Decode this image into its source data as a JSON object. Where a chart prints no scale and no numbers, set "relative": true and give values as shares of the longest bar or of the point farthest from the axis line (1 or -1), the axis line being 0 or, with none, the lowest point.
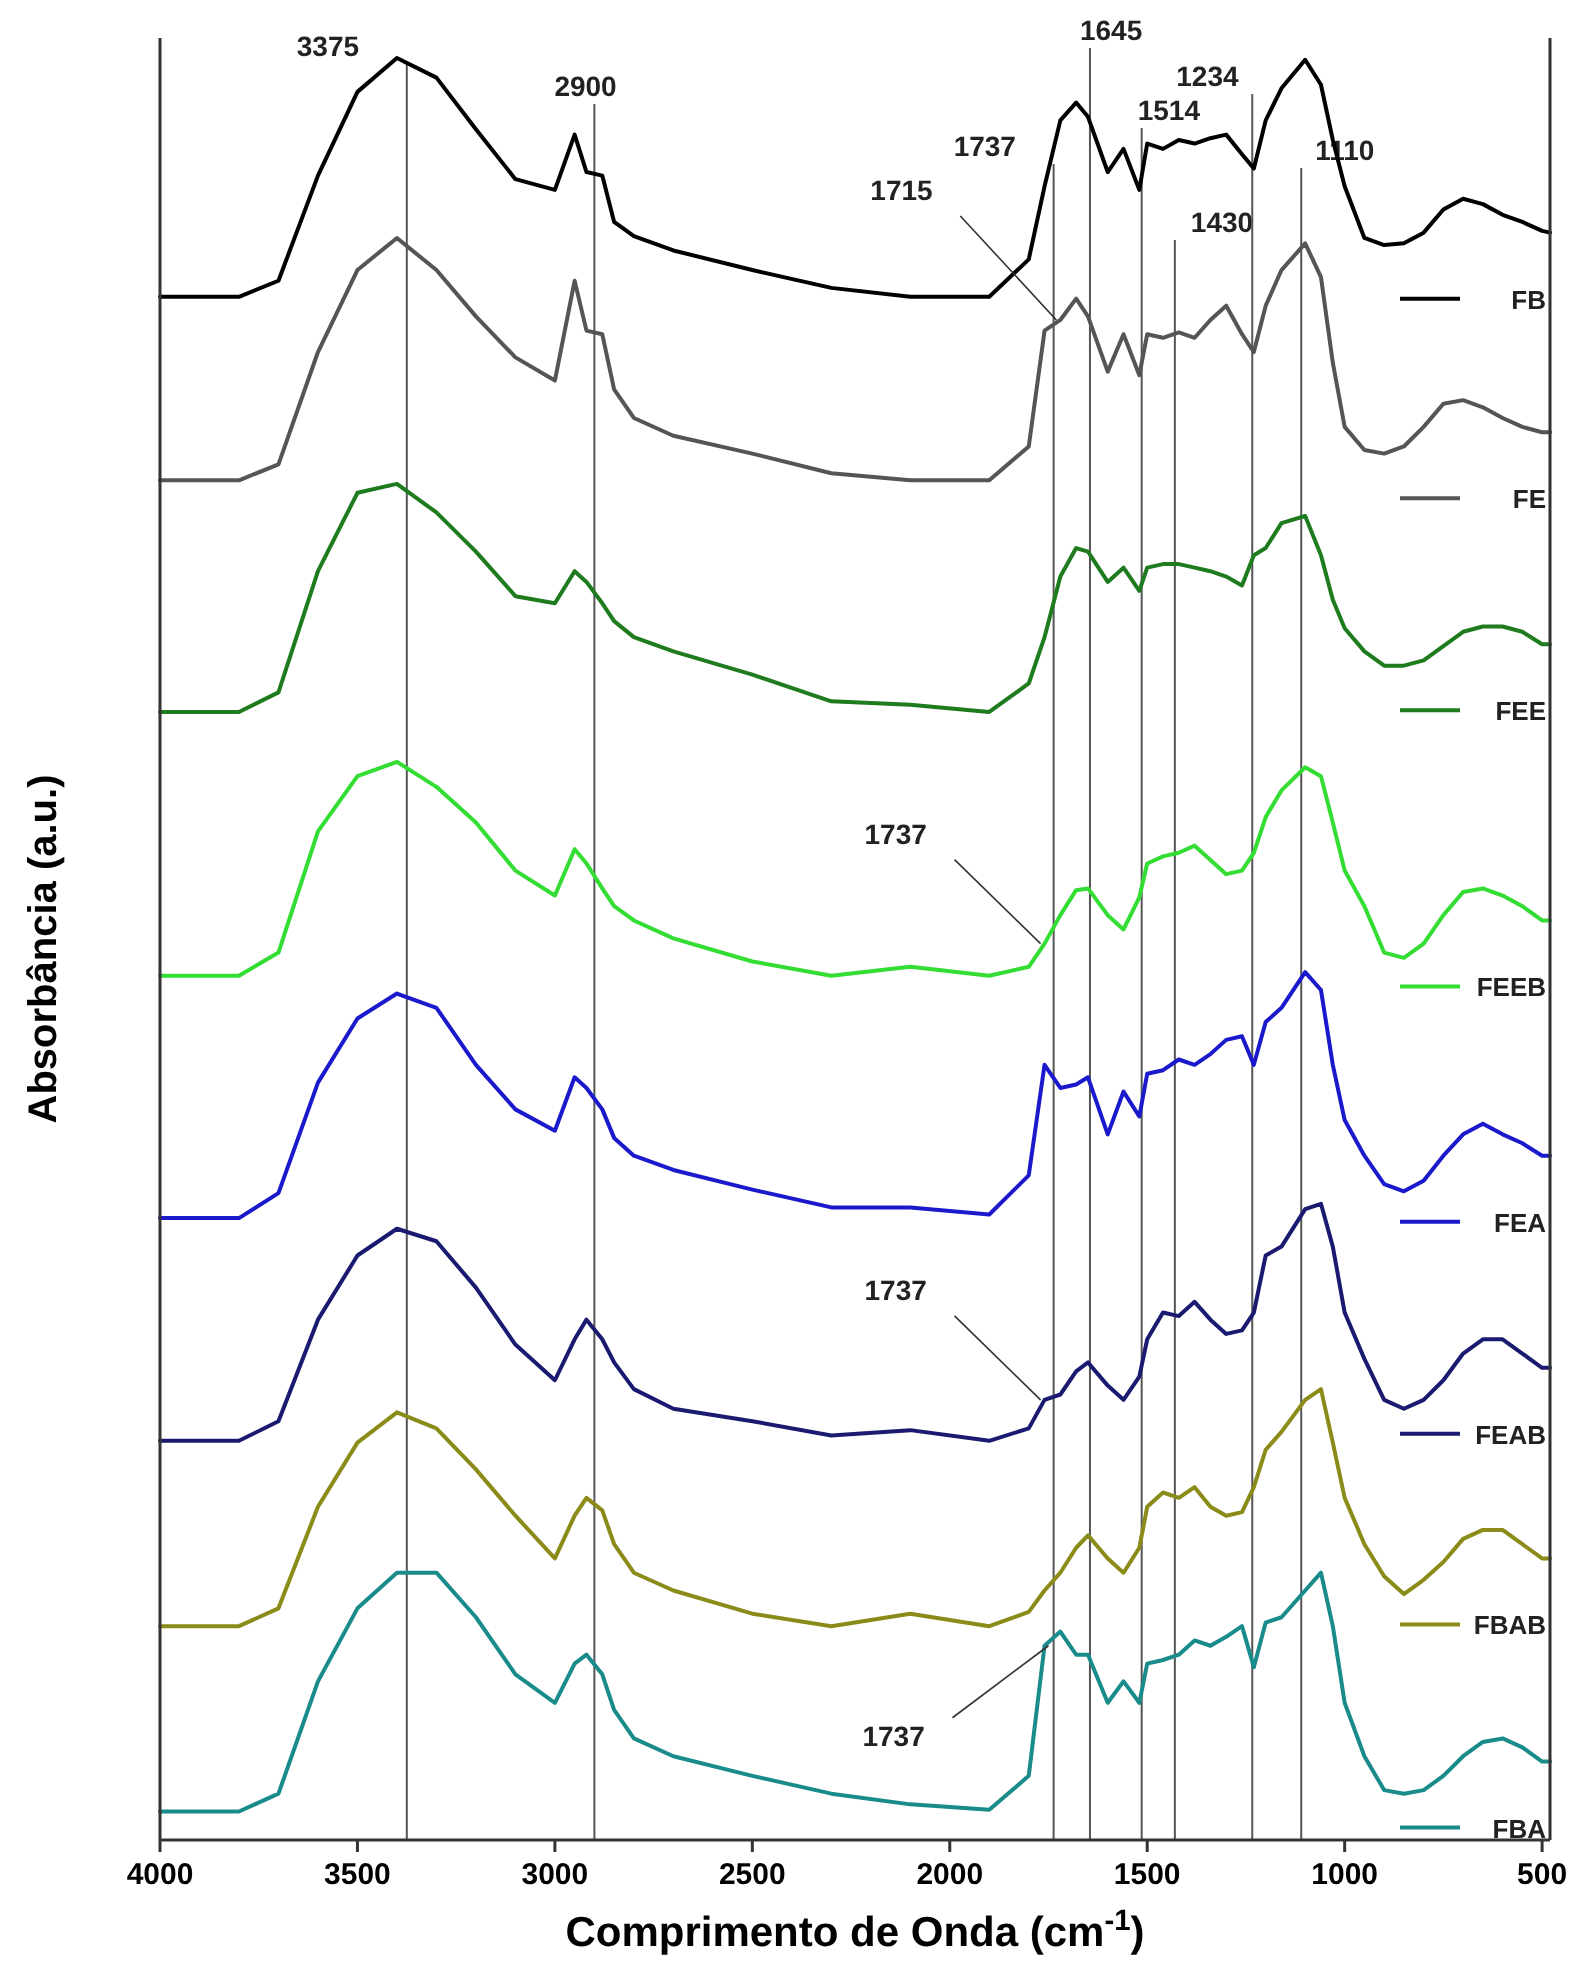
{
  "chart_data": {
    "type": "line",
    "relative": true,
    "xlabel": "Comprimento de Onda (cm$^{-1}$)",
    "ylabel": "Absorbância (a.u.)",
    "xlim": [
      4000,
      480
    ],
    "xticks": [
      4000,
      3500,
      3000,
      2500,
      2000,
      1500,
      1000,
      500
    ],
    "x": [
      4000,
      3800,
      3700,
      3600,
      3500,
      3400,
      3300,
      3200,
      3100,
      3000,
      2950,
      2920,
      2880,
      2850,
      2800,
      2700,
      2500,
      2300,
      2100,
      1900,
      1800,
      1760,
      1720,
      1680,
      1650,
      1600,
      1560,
      1520,
      1500,
      1460,
      1420,
      1380,
      1340,
      1300,
      1260,
      1230,
      1200,
      1160,
      1100,
      1060,
      1030,
      1000,
      950,
      900,
      850,
      800,
      750,
      700,
      650,
      600,
      550,
      500,
      480
    ],
    "line_style": "solid",
    "marker": "none",
    "grid": false,
    "legend": "right",
    "series": [
      {
        "name": "FB",
        "color": "#000000",
        "values": [
          0.866,
          0.866,
          0.875,
          0.934,
          0.981,
          1,
          0.989,
          0.96,
          0.932,
          0.926,
          0.957,
          0.936,
          0.934,
          0.908,
          0.9,
          0.892,
          0.881,
          0.871,
          0.866,
          0.866,
          0.887,
          0.928,
          0.965,
          0.975,
          0.967,
          0.936,
          0.949,
          0.926,
          0.952,
          0.949,
          0.954,
          0.952,
          0.955,
          0.957,
          0.946,
          0.938,
          0.965,
          0.983,
          0.999,
          0.985,
          0.954,
          0.928,
          0.899,
          0.895,
          0.896,
          0.902,
          0.915,
          0.921,
          0.918,
          0.912,
          0.908,
          0.903,
          0.902
        ]
      },
      {
        "name": "FE",
        "color": "#555555",
        "values": [
          0.763,
          0.763,
          0.772,
          0.835,
          0.881,
          0.899,
          0.881,
          0.855,
          0.832,
          0.819,
          0.875,
          0.847,
          0.845,
          0.814,
          0.798,
          0.788,
          0.778,
          0.767,
          0.763,
          0.763,
          0.782,
          0.847,
          0.853,
          0.865,
          0.855,
          0.824,
          0.845,
          0.822,
          0.845,
          0.843,
          0.846,
          0.843,
          0.853,
          0.861,
          0.845,
          0.835,
          0.861,
          0.881,
          0.896,
          0.877,
          0.829,
          0.793,
          0.78,
          0.778,
          0.782,
          0.793,
          0.806,
          0.808,
          0.804,
          0.798,
          0.793,
          0.79,
          0.79
        ]
      },
      {
        "name": "FEE",
        "color": "#1e7b1e",
        "values": [
          0.633,
          0.633,
          0.644,
          0.712,
          0.756,
          0.761,
          0.745,
          0.723,
          0.698,
          0.694,
          0.712,
          0.706,
          0.694,
          0.684,
          0.675,
          0.667,
          0.654,
          0.639,
          0.637,
          0.633,
          0.649,
          0.675,
          0.709,
          0.725,
          0.723,
          0.706,
          0.714,
          0.701,
          0.714,
          0.716,
          0.716,
          0.714,
          0.712,
          0.709,
          0.704,
          0.721,
          0.725,
          0.739,
          0.743,
          0.721,
          0.696,
          0.68,
          0.667,
          0.659,
          0.659,
          0.662,
          0.67,
          0.678,
          0.681,
          0.681,
          0.678,
          0.671,
          0.671
        ]
      },
      {
        "name": "FEEB",
        "color": "#33dd33",
        "values": [
          0.485,
          0.485,
          0.498,
          0.566,
          0.597,
          0.605,
          0.591,
          0.571,
          0.544,
          0.53,
          0.556,
          0.548,
          0.534,
          0.524,
          0.516,
          0.506,
          0.493,
          0.485,
          0.49,
          0.485,
          0.49,
          0.503,
          0.519,
          0.533,
          0.534,
          0.519,
          0.511,
          0.529,
          0.548,
          0.552,
          0.554,
          0.558,
          0.55,
          0.542,
          0.544,
          0.554,
          0.574,
          0.589,
          0.602,
          0.597,
          0.571,
          0.544,
          0.524,
          0.498,
          0.495,
          0.503,
          0.519,
          0.532,
          0.534,
          0.53,
          0.524,
          0.516,
          0.516
        ]
      },
      {
        "name": "FEA",
        "color": "#1a1acc",
        "values": [
          0.349,
          0.349,
          0.363,
          0.425,
          0.461,
          0.475,
          0.467,
          0.435,
          0.41,
          0.398,
          0.428,
          0.422,
          0.41,
          0.394,
          0.384,
          0.376,
          0.365,
          0.355,
          0.355,
          0.351,
          0.373,
          0.435,
          0.422,
          0.424,
          0.428,
          0.396,
          0.42,
          0.406,
          0.43,
          0.432,
          0.438,
          0.435,
          0.441,
          0.449,
          0.451,
          0.435,
          0.459,
          0.467,
          0.487,
          0.477,
          0.435,
          0.404,
          0.384,
          0.368,
          0.364,
          0.37,
          0.384,
          0.396,
          0.402,
          0.396,
          0.391,
          0.384,
          0.384
        ]
      },
      {
        "name": "FEAB",
        "color": "#1a1a70",
        "values": [
          0.224,
          0.224,
          0.235,
          0.292,
          0.328,
          0.343,
          0.336,
          0.31,
          0.278,
          0.258,
          0.281,
          0.292,
          0.281,
          0.268,
          0.253,
          0.242,
          0.235,
          0.227,
          0.23,
          0.224,
          0.231,
          0.247,
          0.25,
          0.263,
          0.268,
          0.255,
          0.247,
          0.26,
          0.281,
          0.296,
          0.294,
          0.302,
          0.292,
          0.284,
          0.286,
          0.296,
          0.328,
          0.333,
          0.354,
          0.357,
          0.333,
          0.296,
          0.27,
          0.247,
          0.242,
          0.247,
          0.258,
          0.273,
          0.281,
          0.281,
          0.273,
          0.265,
          0.265
        ]
      },
      {
        "name": "FBAB",
        "color": "#8b8b1a",
        "values": [
          0.12,
          0.12,
          0.13,
          0.187,
          0.223,
          0.24,
          0.231,
          0.208,
          0.182,
          0.158,
          0.182,
          0.192,
          0.185,
          0.166,
          0.15,
          0.14,
          0.127,
          0.12,
          0.127,
          0.12,
          0.128,
          0.14,
          0.15,
          0.164,
          0.171,
          0.158,
          0.15,
          0.164,
          0.187,
          0.195,
          0.192,
          0.198,
          0.187,
          0.182,
          0.184,
          0.198,
          0.219,
          0.229,
          0.247,
          0.253,
          0.223,
          0.192,
          0.166,
          0.148,
          0.138,
          0.146,
          0.156,
          0.169,
          0.174,
          0.174,
          0.166,
          0.158,
          0.158
        ]
      },
      {
        "name": "FBA",
        "color": "#1a8b8b",
        "values": [
          0.016,
          0.016,
          0.026,
          0.089,
          0.13,
          0.15,
          0.15,
          0.125,
          0.093,
          0.077,
          0.099,
          0.104,
          0.093,
          0.073,
          0.057,
          0.047,
          0.036,
          0.026,
          0.02,
          0.017,
          0.036,
          0.109,
          0.117,
          0.104,
          0.104,
          0.077,
          0.089,
          0.077,
          0.099,
          0.101,
          0.104,
          0.112,
          0.109,
          0.114,
          0.12,
          0.097,
          0.122,
          0.125,
          0.14,
          0.15,
          0.12,
          0.077,
          0.047,
          0.028,
          0.026,
          0.028,
          0.036,
          0.047,
          0.055,
          0.057,
          0.052,
          0.044,
          0.044
        ]
      }
    ],
    "ref_lines": [
      {
        "axis": "x",
        "value": 3375,
        "label": "3375",
        "color": "#555555"
      },
      {
        "axis": "x",
        "value": 2900,
        "label": "2900",
        "color": "#555555"
      },
      {
        "axis": "x",
        "value": 1737,
        "label": "1737",
        "color": "#555555"
      },
      {
        "axis": "x",
        "value": 1645,
        "label": "1645",
        "color": "#555555"
      },
      {
        "axis": "x",
        "value": 1514,
        "label": "1514",
        "color": "#555555"
      },
      {
        "axis": "x",
        "value": 1430,
        "label": "1430",
        "color": "#555555"
      },
      {
        "axis": "x",
        "value": 1234,
        "label": "1234",
        "color": "#555555"
      },
      {
        "axis": "x",
        "value": 1110,
        "label": "1110",
        "color": "#555555"
      }
    ],
    "annotations": [
      {
        "text": "1715",
        "x": 1720,
        "y": 0.853
      },
      {
        "text": "1737",
        "x": 1760,
        "y": 0.503
      },
      {
        "text": "1737",
        "x": 1760,
        "y": 0.247
      },
      {
        "text": "1737",
        "x": 1740,
        "y": 0.109
      }
    ]
  }
}
